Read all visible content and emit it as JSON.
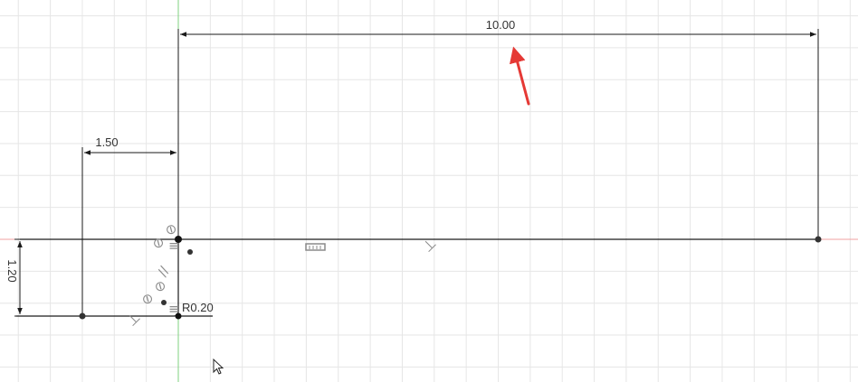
{
  "sketch": {
    "dimensions": {
      "top_width": "10.00",
      "left_offset": "1.50",
      "left_height": "1.20",
      "fillet_radius": "R0.20"
    },
    "constraint_glyphs": {
      "coincident_1": "⊘",
      "coincident_2": "⊘",
      "perpendicular": "⊥",
      "horizontal": "≡",
      "parallel": "//",
      "tangent": "⊘",
      "horizontal_2": "≡"
    },
    "colors": {
      "grid": "#e6e6e6",
      "axis_y": "#7fd07f",
      "axis_x": "#f2a0a0",
      "sketch_line": "#1a1a1a",
      "annotation_arrow": "#e53935",
      "constraint_icon": "#8a8a8a"
    }
  }
}
